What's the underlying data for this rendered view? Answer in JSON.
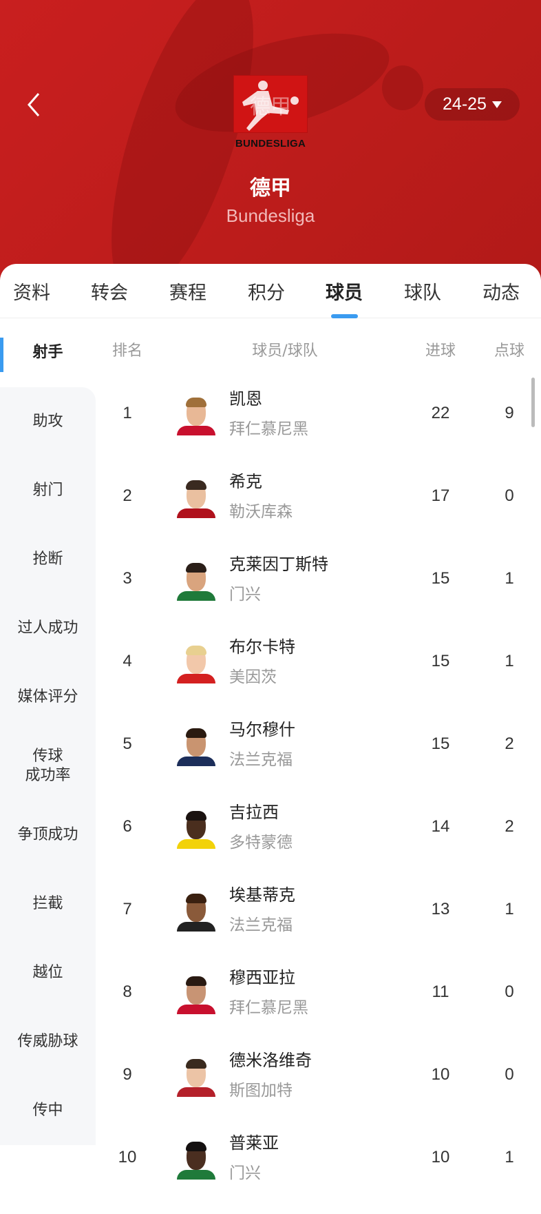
{
  "header": {
    "back_icon": "chevron-left-icon",
    "logo_text": "BUNDESLIGA",
    "logo_overlay": "德甲",
    "title": "德甲",
    "subtitle": "Bundesliga",
    "season": "24-25",
    "season_icon": "caret-down-icon",
    "bg_color": "#c41e1e"
  },
  "tabs": [
    {
      "label": "资料"
    },
    {
      "label": "转会"
    },
    {
      "label": "赛程"
    },
    {
      "label": "积分"
    },
    {
      "label": "球员",
      "active": true
    },
    {
      "label": "球队"
    },
    {
      "label": "动态"
    }
  ],
  "accent": "#3a9bf0",
  "sidebar": {
    "items": [
      {
        "label": "射手",
        "active": true
      },
      {
        "label": "助攻"
      },
      {
        "label": "射门"
      },
      {
        "label": "抢断"
      },
      {
        "label": "过人成功"
      },
      {
        "label": "媒体评分"
      },
      {
        "label": "传球\n成功率"
      },
      {
        "label": "争顶成功"
      },
      {
        "label": "拦截"
      },
      {
        "label": "越位"
      },
      {
        "label": "传威胁球"
      },
      {
        "label": "传中"
      }
    ]
  },
  "table": {
    "headers": {
      "rank": "排名",
      "player": "球员/球队",
      "goals": "进球",
      "penalties": "点球"
    },
    "rows": [
      {
        "rank": "1",
        "name": "凯恩",
        "team": "拜仁慕尼黑",
        "goals": "22",
        "penalties": "9",
        "jersey": "#c8102e",
        "skin": "#e8b896",
        "hair": "#a0703a"
      },
      {
        "rank": "2",
        "name": "希克",
        "team": "勒沃库森",
        "goals": "17",
        "penalties": "0",
        "jersey": "#b0111c",
        "skin": "#eac0a0",
        "hair": "#3a2a20"
      },
      {
        "rank": "3",
        "name": "克莱因丁斯特",
        "team": "门兴",
        "goals": "15",
        "penalties": "1",
        "jersey": "#1f7a3a",
        "skin": "#d9a47e",
        "hair": "#2a1e18"
      },
      {
        "rank": "4",
        "name": "布尔卡特",
        "team": "美因茨",
        "goals": "15",
        "penalties": "1",
        "jersey": "#d42020",
        "skin": "#f2c8aa",
        "hair": "#e8d090"
      },
      {
        "rank": "5",
        "name": "马尔穆什",
        "team": "法兰克福",
        "goals": "15",
        "penalties": "2",
        "jersey": "#1c2e5a",
        "skin": "#c99470",
        "hair": "#2a1a10"
      },
      {
        "rank": "6",
        "name": "吉拉西",
        "team": "多特蒙德",
        "goals": "14",
        "penalties": "2",
        "jersey": "#f2d20a",
        "skin": "#4a2e1e",
        "hair": "#1a1210"
      },
      {
        "rank": "7",
        "name": "埃基蒂克",
        "team": "法兰克福",
        "goals": "13",
        "penalties": "1",
        "jersey": "#222222",
        "skin": "#8a5a3a",
        "hair": "#3a2010"
      },
      {
        "rank": "8",
        "name": "穆西亚拉",
        "team": "拜仁慕尼黑",
        "goals": "11",
        "penalties": "0",
        "jersey": "#c8102e",
        "skin": "#c89474",
        "hair": "#2a1a12"
      },
      {
        "rank": "9",
        "name": "德米洛维奇",
        "team": "斯图加特",
        "goals": "10",
        "penalties": "0",
        "jersey": "#b4202a",
        "skin": "#ecc4a6",
        "hair": "#3a2a1e"
      },
      {
        "rank": "10",
        "name": "普莱亚",
        "team": "门兴",
        "goals": "10",
        "penalties": "1",
        "jersey": "#1f7a3a",
        "skin": "#4a2e20",
        "hair": "#141010"
      }
    ]
  }
}
